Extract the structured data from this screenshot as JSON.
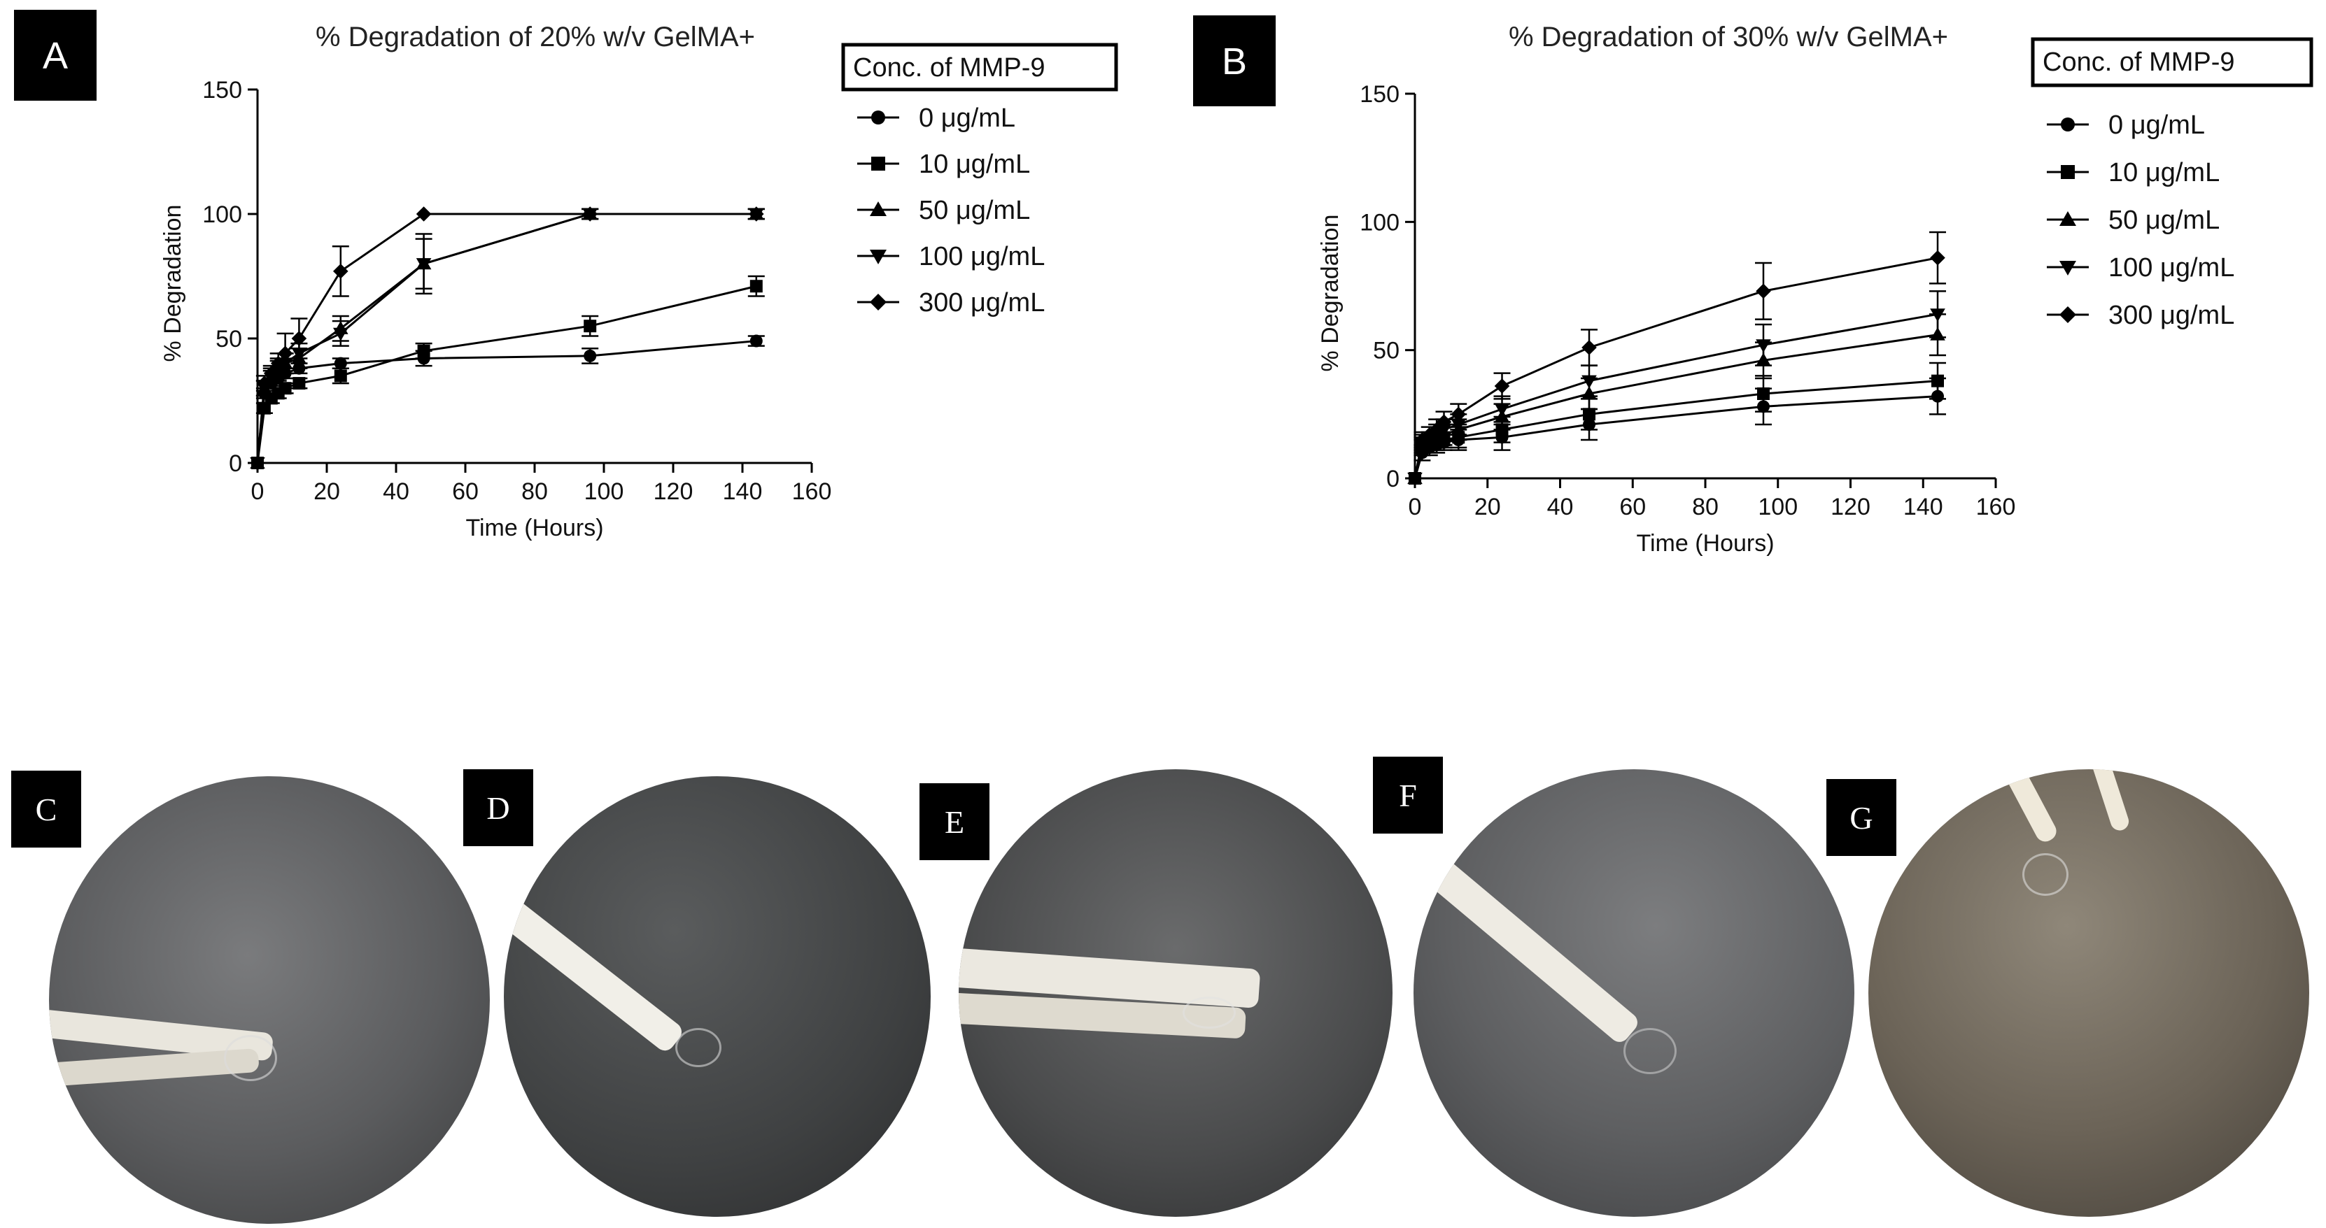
{
  "chart_data": [
    {
      "panel": "A",
      "type": "line",
      "title": "% Degradation of 20% w/v GelMA+",
      "xlabel": "Time (Hours)",
      "ylabel": "% Degradation",
      "xlim": [
        0,
        160
      ],
      "ylim": [
        0,
        150
      ],
      "xticks": [
        "0",
        "20",
        "40",
        "60",
        "80",
        "100",
        "120",
        "140",
        "160"
      ],
      "yticks": [
        "0",
        "50",
        "100",
        "150"
      ],
      "legend_title": "Conc. of MMP-9",
      "legend_position": "right",
      "series": [
        {
          "name": "0 μg/mL",
          "marker": "circle",
          "x": [
            0,
            2,
            4,
            6,
            8,
            12,
            24,
            48,
            96,
            144
          ],
          "y": [
            0,
            28,
            32,
            34,
            36,
            38,
            40,
            42,
            43,
            49
          ],
          "err": [
            0,
            2,
            2,
            2,
            2,
            2,
            2,
            3,
            3,
            2
          ]
        },
        {
          "name": "10 μg/mL",
          "marker": "square",
          "x": [
            0,
            2,
            4,
            6,
            8,
            12,
            24,
            48,
            96,
            144
          ],
          "y": [
            0,
            22,
            26,
            28,
            30,
            32,
            35,
            45,
            55,
            71
          ],
          "err": [
            0,
            2,
            2,
            2,
            2,
            2,
            3,
            3,
            4,
            4
          ]
        },
        {
          "name": "50 μg/mL",
          "marker": "triangle",
          "x": [
            0,
            2,
            4,
            6,
            8,
            12,
            24,
            48,
            96,
            144
          ],
          "y": [
            0,
            30,
            35,
            38,
            40,
            42,
            54,
            80,
            100,
            100
          ],
          "err": [
            0,
            3,
            3,
            4,
            4,
            4,
            5,
            10,
            2,
            2
          ]
        },
        {
          "name": "100 μg/mL",
          "marker": "tri-down",
          "x": [
            0,
            2,
            4,
            6,
            8,
            12,
            24,
            48,
            96,
            144
          ],
          "y": [
            0,
            30,
            34,
            37,
            40,
            44,
            52,
            80,
            100,
            100
          ],
          "err": [
            0,
            3,
            3,
            4,
            4,
            4,
            5,
            12,
            2,
            2
          ]
        },
        {
          "name": "300 μg/mL",
          "marker": "diamond",
          "x": [
            0,
            2,
            4,
            6,
            8,
            12,
            24,
            48,
            96,
            144
          ],
          "y": [
            0,
            32,
            36,
            40,
            44,
            50,
            77,
            100,
            100,
            100
          ],
          "err": [
            0,
            3,
            3,
            4,
            8,
            8,
            10,
            0,
            2,
            2
          ]
        }
      ]
    },
    {
      "panel": "B",
      "type": "line",
      "title": "% Degradation of 30% w/v GelMA+",
      "xlabel": "Time (Hours)",
      "ylabel": "% Degradation",
      "xlim": [
        0,
        160
      ],
      "ylim": [
        0,
        150
      ],
      "xticks": [
        "0",
        "20",
        "40",
        "60",
        "80",
        "100",
        "120",
        "140",
        "160"
      ],
      "yticks": [
        "0",
        "50",
        "100",
        "150"
      ],
      "legend_title": "Conc. of MMP-9",
      "legend_position": "right",
      "series": [
        {
          "name": "0 μg/mL",
          "marker": "circle",
          "x": [
            0,
            2,
            4,
            6,
            8,
            12,
            24,
            48,
            96,
            144
          ],
          "y": [
            0,
            10,
            12,
            13,
            14,
            15,
            16,
            21,
            28,
            32
          ],
          "err": [
            0,
            3,
            3,
            3,
            3,
            4,
            5,
            6,
            7,
            7
          ]
        },
        {
          "name": "10 μg/mL",
          "marker": "square",
          "x": [
            0,
            2,
            4,
            6,
            8,
            12,
            24,
            48,
            96,
            144
          ],
          "y": [
            0,
            12,
            13,
            14,
            15,
            16,
            19,
            25,
            33,
            38
          ],
          "err": [
            0,
            3,
            3,
            3,
            3,
            4,
            5,
            6,
            7,
            7
          ]
        },
        {
          "name": "50 μg/mL",
          "marker": "triangle",
          "x": [
            0,
            2,
            4,
            6,
            8,
            12,
            24,
            48,
            96,
            144
          ],
          "y": [
            0,
            13,
            14,
            16,
            17,
            19,
            24,
            33,
            46,
            56
          ],
          "err": [
            0,
            3,
            3,
            3,
            4,
            4,
            5,
            6,
            7,
            8
          ]
        },
        {
          "name": "100 μg/mL",
          "marker": "tri-down",
          "x": [
            0,
            2,
            4,
            6,
            8,
            12,
            24,
            48,
            96,
            144
          ],
          "y": [
            0,
            14,
            15,
            17,
            19,
            21,
            27,
            38,
            52,
            64
          ],
          "err": [
            0,
            3,
            3,
            4,
            4,
            4,
            5,
            6,
            8,
            9
          ]
        },
        {
          "name": "300 μg/mL",
          "marker": "diamond",
          "x": [
            0,
            2,
            4,
            6,
            8,
            12,
            24,
            48,
            96,
            144
          ],
          "y": [
            0,
            15,
            17,
            19,
            22,
            25,
            36,
            51,
            73,
            86
          ],
          "err": [
            0,
            3,
            3,
            4,
            4,
            4,
            5,
            7,
            11,
            10
          ]
        }
      ]
    }
  ],
  "photos": [
    {
      "letter": "C",
      "bg": "#5b5c5e"
    },
    {
      "letter": "D",
      "bg": "#3f4142"
    },
    {
      "letter": "E",
      "bg": "#4a4b4c"
    },
    {
      "letter": "F",
      "bg": "#5e5f61"
    },
    {
      "letter": "G",
      "bg": "#6b6357"
    }
  ]
}
